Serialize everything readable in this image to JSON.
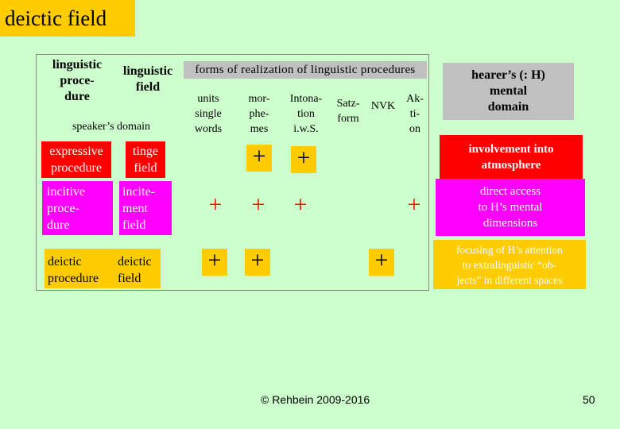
{
  "title": "deictic field",
  "header": {
    "col1": "linguistic proce-dure",
    "col1_lines": [
      "linguistic",
      "proce-",
      "dure"
    ],
    "col2_lines": [
      "linguistic",
      "field"
    ],
    "forms": "forms of realization of linguistic procedures",
    "speaker_domain": "speaker’s domain",
    "hearer_lines": [
      "hearer’s (: H)",
      "mental",
      "domain"
    ],
    "sub": [
      {
        "lines": [
          "units",
          "single",
          "words"
        ]
      },
      {
        "lines": [
          "mor-",
          "phe-",
          "mes"
        ]
      },
      {
        "lines": [
          "Intona-",
          "tion",
          "i.w.S."
        ]
      },
      {
        "lines": [
          "Satz-",
          "form"
        ]
      },
      {
        "lines": [
          "NVK"
        ]
      },
      {
        "lines": [
          "Ak-",
          "ti-",
          "on"
        ]
      }
    ]
  },
  "rows": [
    {
      "procedure_lines": [
        "expressive",
        "procedure"
      ],
      "field_lines": [
        "tinge",
        "field"
      ],
      "plus": "+",
      "hearer_lines": [
        "involvement into",
        "atmosphere"
      ]
    },
    {
      "procedure_lines": [
        "incitive",
        "proce-",
        "dure"
      ],
      "field_lines": [
        "incite-",
        "ment",
        "field"
      ],
      "plus": "+",
      "hearer_lines": [
        "direct access",
        "to H’s mental",
        "dimensions"
      ]
    },
    {
      "procedure_lines": [
        "deictic",
        "procedure"
      ],
      "field_lines": [
        "deictic",
        "field"
      ],
      "plus": "+",
      "hearer_lines": [
        "focusing of H’s attention",
        "to extralinguistic “ob-",
        "jects” in different spaces"
      ]
    }
  ],
  "footer": {
    "copyright": "© Rehbein 2009-2016",
    "page": "50"
  },
  "colors": {
    "background": "#ccffcc",
    "title_bg": "#ffcc00",
    "red": "#ff0000",
    "magenta": "#ff00ff",
    "grey": "#c0c0c0"
  }
}
